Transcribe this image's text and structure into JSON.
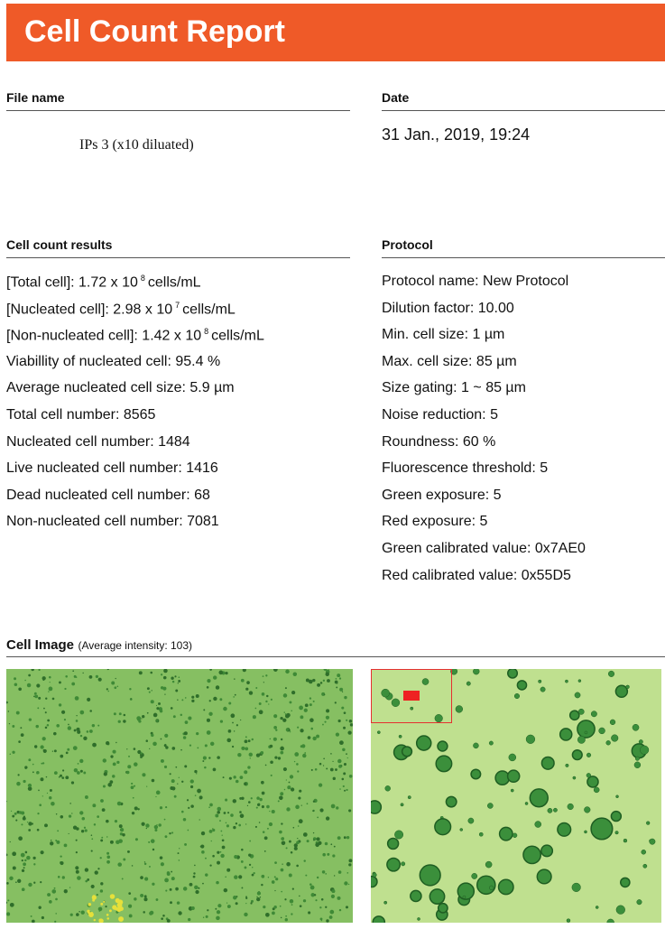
{
  "header": {
    "title": "Cell Count Report"
  },
  "file_name": {
    "label": "File name",
    "value": "IPs 3 (x10 diluated)"
  },
  "date": {
    "label": "Date",
    "value": "31 Jan., 2019, 19:24"
  },
  "results": {
    "label": "Cell count results",
    "items": [
      {
        "before": "[Total cell]: 1.72 x 10",
        "sup": "8",
        "after": "cells/mL"
      },
      {
        "before": "[Nucleated cell]: 2.98 x 10",
        "sup": "7",
        "after": "cells/mL"
      },
      {
        "before": "[Non-nucleated cell]: 1.42 x 10",
        "sup": "8",
        "after": "cells/mL"
      },
      "Viabillity of nucleated cell: 95.4 %",
      "Average nucleated cell size: 5.9 µm",
      "Total cell number: 8565",
      "Nucleated cell number: 1484",
      "Live nucleated cell number: 1416",
      "Dead nucleated cell number: 68",
      "Non-nucleated cell number: 7081"
    ]
  },
  "protocol": {
    "label": "Protocol",
    "items": [
      "Protocol name: New Protocol",
      "Dilution factor: 10.00",
      "Min. cell size: 1 µm",
      "Max. cell size: 85 µm",
      "Size gating: 1 ~ 85 µm",
      "Noise reduction: 5",
      "Roundness: 60 %",
      "Fluorescence threshold: 5",
      "Green exposure: 5",
      "Red exposure: 5",
      "Green calibrated value: 0x7AE0",
      "Red calibrated value: 0x55D5"
    ]
  },
  "cell_image": {
    "label": "Cell Image",
    "note": "(Average intensity: 103)"
  }
}
